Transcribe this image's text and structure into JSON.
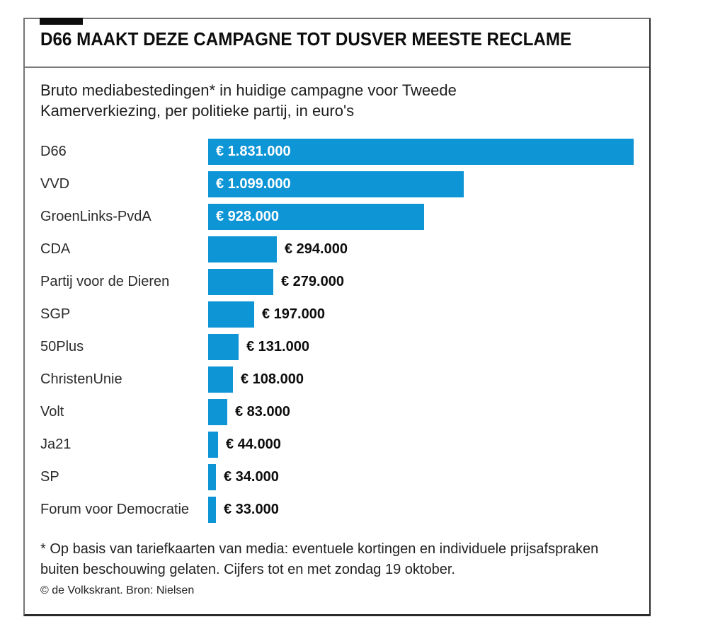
{
  "header": {
    "title": "D66 MAAKT DEZE CAMPAGNE TOT DUSVER MEESTE RECLAME"
  },
  "subtitle": "Bruto mediabestedingen* in huidige campagne voor Tweede\nKamerverkiezing, per politieke partij, in euro's",
  "chart_data": {
    "type": "bar",
    "orientation": "horizontal",
    "title": "D66 MAAKT DEZE CAMPAGNE TOT DUSVER MEESTE RECLAME",
    "subtitle": "Bruto mediabestedingen* in huidige campagne voor Tweede Kamerverkiezing, per politieke partij, in euro's",
    "xlabel": "",
    "ylabel": "",
    "xlim": [
      0,
      1831000
    ],
    "grid": false,
    "legend": false,
    "bar_color": "#0e95d6",
    "categories": [
      "D66",
      "VVD",
      "GroenLinks-PvdA",
      "CDA",
      "Partij voor de Dieren",
      "SGP",
      "50Plus",
      "ChristenUnie",
      "Volt",
      "Ja21",
      "SP",
      "Forum voor Democratie"
    ],
    "values": [
      1831000,
      1099000,
      928000,
      294000,
      279000,
      197000,
      131000,
      108000,
      83000,
      44000,
      34000,
      33000
    ],
    "value_labels": [
      "€ 1.831.000",
      "€ 1.099.000",
      "€ 928.000",
      "€ 294.000",
      "€ 279.000",
      "€ 197.000",
      "€ 131.000",
      "€ 108.000",
      "€ 83.000",
      "€ 44.000",
      "€ 34.000",
      "€ 33.000"
    ]
  },
  "footnote": "* Op basis van tariefkaarten van media: eventuele kortingen en individuele prijsafspraken\nbuiten beschouwing gelaten. Cijfers tot en met zondag 19 oktober.",
  "credit": "© de Volkskrant. Bron: Nielsen",
  "colors": {
    "bar": "#0e95d6",
    "accent_tab": "#0d0d0d",
    "separator": "#7a7a7a"
  }
}
